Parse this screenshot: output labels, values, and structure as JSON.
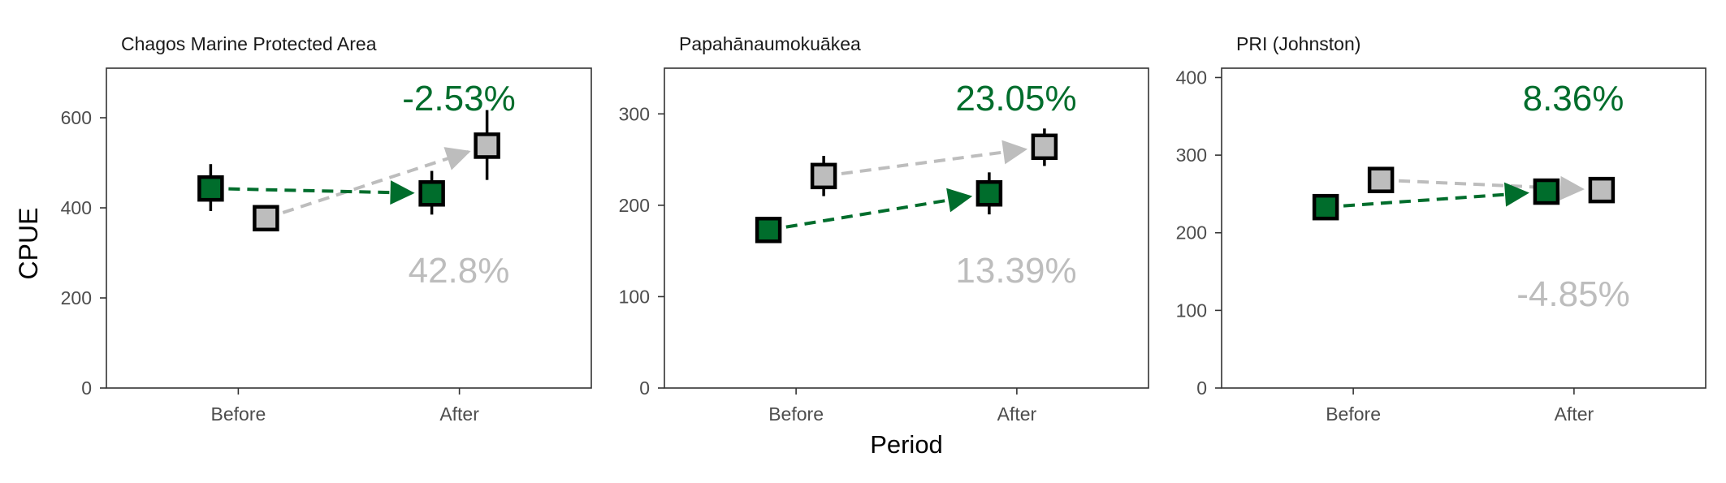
{
  "axis": {
    "y_label": "CPUE",
    "x_label": "Period"
  },
  "colors": {
    "inside": "#006d2c",
    "outside": "#bdbdbd",
    "pct_inside": "#006d2c",
    "pct_outside": "#bdbdbd"
  },
  "chart_data": [
    {
      "type": "scatter",
      "title": "Chagos Marine Protected Area",
      "categories": [
        "Before",
        "After"
      ],
      "ylim": [
        0,
        710
      ],
      "yticks": [
        0,
        200,
        400,
        600
      ],
      "series": [
        {
          "color_key": "inside",
          "values": [
            443,
            432
          ],
          "low": [
            393,
            385
          ],
          "high": [
            497,
            482
          ]
        },
        {
          "color_key": "outside",
          "values": [
            377,
            538
          ],
          "low": [
            350,
            462
          ],
          "high": [
            405,
            617
          ]
        }
      ],
      "annotations": {
        "inside_pct": "-2.53%",
        "outside_pct": "42.8%"
      }
    },
    {
      "type": "scatter",
      "title": "Papahānaumokuākea",
      "categories": [
        "Before",
        "After"
      ],
      "ylim": [
        0,
        350
      ],
      "yticks": [
        0,
        100,
        200,
        300
      ],
      "series": [
        {
          "color_key": "inside",
          "values": [
            173,
            213
          ],
          "low": [
            167,
            190
          ],
          "high": [
            179,
            236
          ]
        },
        {
          "color_key": "outside",
          "values": [
            232,
            264
          ],
          "low": [
            210,
            243
          ],
          "high": [
            254,
            284
          ]
        }
      ],
      "annotations": {
        "inside_pct": "23.05%",
        "outside_pct": "13.39%"
      }
    },
    {
      "type": "scatter",
      "title": "PRI (Johnston)",
      "categories": [
        "Before",
        "After"
      ],
      "ylim": [
        0,
        412
      ],
      "yticks": [
        0,
        100,
        200,
        300,
        400
      ],
      "series": [
        {
          "color_key": "inside",
          "values": [
            233,
            253
          ],
          "low": [
            228,
            247
          ],
          "high": [
            238,
            259
          ]
        },
        {
          "color_key": "outside",
          "values": [
            268,
            255
          ],
          "low": [
            262,
            249
          ],
          "high": [
            274,
            261
          ]
        }
      ],
      "annotations": {
        "inside_pct": "8.36%",
        "outside_pct": "-4.85%"
      }
    }
  ]
}
